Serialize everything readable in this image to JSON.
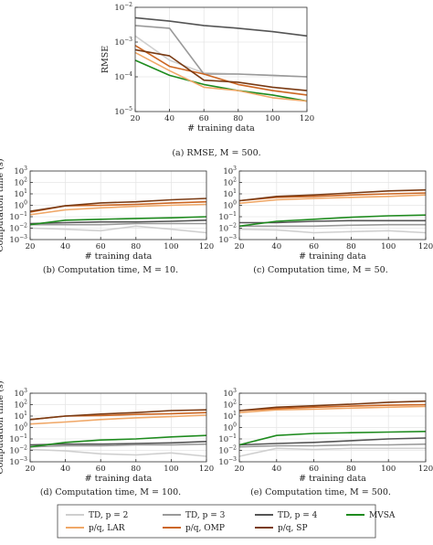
{
  "series_styles": [
    {
      "name": "TD, $p = 2$",
      "label": "TD, p = 2",
      "color": "#cfcfcf"
    },
    {
      "name": "TD, $p = 3$",
      "label": "TD, p = 3",
      "color": "#9a9a9a"
    },
    {
      "name": "TD, $p = 4$",
      "label": "TD, p = 4",
      "color": "#555555"
    },
    {
      "name": "MVSA",
      "label": "MVSA",
      "color": "#1e8b1e"
    },
    {
      "name": "$p/q$, LAR",
      "label": "p/q, LAR",
      "color": "#f0a868"
    },
    {
      "name": "$p/q$, OMP",
      "label": "p/q, OMP",
      "color": "#cc6622"
    },
    {
      "name": "$p/q$, SP",
      "label": "p/q, SP",
      "color": "#7a3b14"
    }
  ],
  "legend_order": [
    0,
    1,
    2,
    3,
    4,
    5,
    6
  ],
  "chart_data": [
    {
      "id": "a",
      "type": "line",
      "caption": "(a) RMSE, M = 500.",
      "ylabel": "RMSE",
      "xlabel": "# training data",
      "yscale": "log",
      "ylim_exp": [
        -5,
        -2
      ],
      "xlim": [
        20,
        120
      ],
      "x": [
        20,
        40,
        60,
        80,
        100,
        120
      ],
      "xticks": [
        "20",
        "40",
        "60",
        "80",
        "100",
        "120"
      ],
      "yticks": [
        "10",
        "10",
        "10",
        "10"
      ],
      "ytick_exps": [
        "−5",
        "−4",
        "−3",
        "−2"
      ],
      "series": [
        {
          "style": 0,
          "values": [
            0.0015,
            0.0003,
            0.00013,
            0.00012,
            0.00011,
            0.0001
          ]
        },
        {
          "style": 1,
          "values": [
            0.003,
            0.0025,
            0.00012,
            0.00012,
            0.00011,
            0.0001
          ]
        },
        {
          "style": 2,
          "values": [
            0.005,
            0.004,
            0.003,
            0.0025,
            0.002,
            0.0015
          ]
        },
        {
          "style": 3,
          "values": [
            0.0003,
            0.00011,
            6e-05,
            4e-05,
            3e-05,
            2e-05
          ]
        },
        {
          "style": 4,
          "values": [
            0.0005,
            0.00015,
            5e-05,
            4e-05,
            2.5e-05,
            2e-05
          ]
        },
        {
          "style": 5,
          "values": [
            0.0008,
            0.0002,
            0.00012,
            6e-05,
            4e-05,
            3e-05
          ]
        },
        {
          "style": 6,
          "values": [
            0.0006,
            0.0004,
            8e-05,
            7e-05,
            5e-05,
            4e-05
          ]
        }
      ]
    },
    {
      "id": "b",
      "type": "line",
      "caption": "(b) Computation time, M = 10.",
      "ylabel": "Computation time (s)",
      "xlabel": "# training data",
      "yscale": "log",
      "ylim_exp": [
        -3,
        3
      ],
      "xlim": [
        20,
        120
      ],
      "x": [
        20,
        40,
        60,
        80,
        100,
        120
      ],
      "xticks": [
        "20",
        "40",
        "60",
        "80",
        "100",
        "120"
      ],
      "yticks": [
        "10",
        "10",
        "10",
        "10",
        "10",
        "10",
        "10"
      ],
      "ytick_exps": [
        "−3",
        "−2",
        "−1",
        "0",
        "1",
        "2",
        "3"
      ],
      "series": [
        {
          "style": 0,
          "values": [
            0.01,
            0.008,
            0.006,
            0.015,
            0.008,
            0.004
          ]
        },
        {
          "style": 1,
          "values": [
            0.02,
            0.02,
            0.02,
            0.025,
            0.025,
            0.025
          ]
        },
        {
          "style": 2,
          "values": [
            0.025,
            0.03,
            0.035,
            0.035,
            0.04,
            0.05
          ]
        },
        {
          "style": 3,
          "values": [
            0.02,
            0.05,
            0.06,
            0.07,
            0.08,
            0.1
          ]
        },
        {
          "style": 4,
          "values": [
            0.15,
            0.4,
            0.6,
            0.8,
            1.0,
            1.2
          ]
        },
        {
          "style": 5,
          "values": [
            0.25,
            0.9,
            1.0,
            1.2,
            1.6,
            2.0
          ]
        },
        {
          "style": 6,
          "values": [
            0.3,
            0.9,
            1.6,
            2.0,
            3.0,
            4.0
          ]
        }
      ]
    },
    {
      "id": "c",
      "type": "line",
      "caption": "(c) Computation time, M = 50.",
      "ylabel": "",
      "xlabel": "# training data",
      "yscale": "log",
      "ylim_exp": [
        -3,
        3
      ],
      "xlim": [
        20,
        120
      ],
      "x": [
        20,
        40,
        60,
        80,
        100,
        120
      ],
      "xticks": [
        "20",
        "40",
        "60",
        "80",
        "100",
        "120"
      ],
      "yticks": [
        "10",
        "10",
        "10",
        "10",
        "10",
        "10",
        "10"
      ],
      "ytick_exps": [
        "−3",
        "−2",
        "−1",
        "0",
        "1",
        "2",
        "3"
      ],
      "series": [
        {
          "style": 0,
          "values": [
            0.008,
            0.007,
            0.004,
            0.005,
            0.006,
            0.004
          ]
        },
        {
          "style": 1,
          "values": [
            0.015,
            0.015,
            0.015,
            0.018,
            0.02,
            0.02
          ]
        },
        {
          "style": 2,
          "values": [
            0.03,
            0.03,
            0.04,
            0.045,
            0.045,
            0.045
          ]
        },
        {
          "style": 3,
          "values": [
            0.015,
            0.04,
            0.06,
            0.09,
            0.12,
            0.14
          ]
        },
        {
          "style": 4,
          "values": [
            1.5,
            3.0,
            4.0,
            5.0,
            6.0,
            8.0
          ]
        },
        {
          "style": 5,
          "values": [
            2.5,
            5.0,
            6.0,
            8.0,
            10.0,
            12.0
          ]
        },
        {
          "style": 6,
          "values": [
            2.5,
            6.0,
            8.0,
            12.0,
            18.0,
            22.0
          ]
        }
      ]
    },
    {
      "id": "d",
      "type": "line",
      "caption": "(d) Computation time, M = 100.",
      "ylabel": "Computation time (s)",
      "xlabel": "# training data",
      "yscale": "log",
      "ylim_exp": [
        -3,
        3
      ],
      "xlim": [
        20,
        120
      ],
      "x": [
        20,
        40,
        60,
        80,
        100,
        120
      ],
      "xticks": [
        "20",
        "40",
        "60",
        "80",
        "100",
        "120"
      ],
      "yticks": [
        "10",
        "10",
        "10",
        "10",
        "10",
        "10",
        "10"
      ],
      "ytick_exps": [
        "−3",
        "−2",
        "−1",
        "0",
        "1",
        "2",
        "3"
      ],
      "series": [
        {
          "style": 0,
          "values": [
            0.012,
            0.009,
            0.005,
            0.004,
            0.006,
            0.003
          ]
        },
        {
          "style": 1,
          "values": [
            0.02,
            0.025,
            0.025,
            0.03,
            0.03,
            0.035
          ]
        },
        {
          "style": 2,
          "values": [
            0.03,
            0.035,
            0.035,
            0.04,
            0.045,
            0.06
          ]
        },
        {
          "style": 3,
          "values": [
            0.02,
            0.05,
            0.08,
            0.1,
            0.15,
            0.2
          ]
        },
        {
          "style": 4,
          "values": [
            2.0,
            3.0,
            5.0,
            7.0,
            9.0,
            12.0
          ]
        },
        {
          "style": 5,
          "values": [
            5.0,
            10.0,
            11.0,
            14.0,
            16.0,
            20.0
          ]
        },
        {
          "style": 6,
          "values": [
            5.0,
            10.0,
            15.0,
            20.0,
            30.0,
            35.0
          ]
        }
      ]
    },
    {
      "id": "e",
      "type": "line",
      "caption": "(e) Computation time, M = 500.",
      "ylabel": "",
      "xlabel": "# training data",
      "yscale": "log",
      "ylim_exp": [
        -3,
        3
      ],
      "xlim": [
        20,
        120
      ],
      "x": [
        20,
        40,
        60,
        80,
        100,
        120
      ],
      "xticks": [
        "20",
        "40",
        "60",
        "80",
        "100",
        "120"
      ],
      "yticks": [
        "10",
        "10",
        "10",
        "10",
        "10",
        "10",
        "10"
      ],
      "ytick_exps": [
        "−3",
        "−2",
        "−1",
        "0",
        "1",
        "2",
        "3"
      ],
      "series": [
        {
          "style": 0,
          "values": [
            0.003,
            0.015,
            0.012,
            0.015,
            0.015,
            0.015
          ]
        },
        {
          "style": 1,
          "values": [
            0.02,
            0.025,
            0.025,
            0.03,
            0.03,
            0.035
          ]
        },
        {
          "style": 2,
          "values": [
            0.03,
            0.04,
            0.05,
            0.07,
            0.1,
            0.12
          ]
        },
        {
          "style": 3,
          "values": [
            0.03,
            0.2,
            0.3,
            0.35,
            0.4,
            0.45
          ]
        },
        {
          "style": 4,
          "values": [
            20.0,
            35.0,
            40.0,
            50.0,
            60.0,
            70.0
          ]
        },
        {
          "style": 5,
          "values": [
            30.0,
            45.0,
            60.0,
            75.0,
            90.0,
            100.0
          ]
        },
        {
          "style": 6,
          "values": [
            30.0,
            60.0,
            80.0,
            110.0,
            160.0,
            200.0
          ]
        }
      ]
    }
  ]
}
